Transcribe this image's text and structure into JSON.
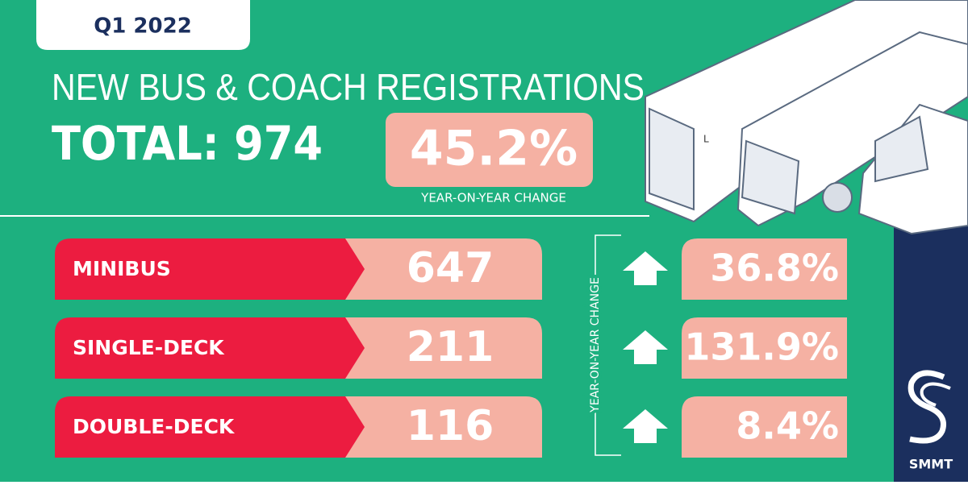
{
  "badge": "Q1 2022",
  "header": {
    "title": "NEW BUS & COACH REGISTRATIONS",
    "total": "TOTAL: 974",
    "change": "45.2%",
    "change_caption": "YEAR-ON-YEAR CHANGE"
  },
  "vehicle_plate": "L",
  "table": {
    "side_label": "YEAR-ON-YEAR CHANGE",
    "rows": [
      [
        "MINIBUS",
        "647",
        "36.8%"
      ],
      [
        "SINGLE-DECK",
        "211",
        "131.9%"
      ],
      [
        "DOUBLE-DECK",
        "116",
        "8.4%"
      ]
    ]
  },
  "logo": "SMMT"
}
